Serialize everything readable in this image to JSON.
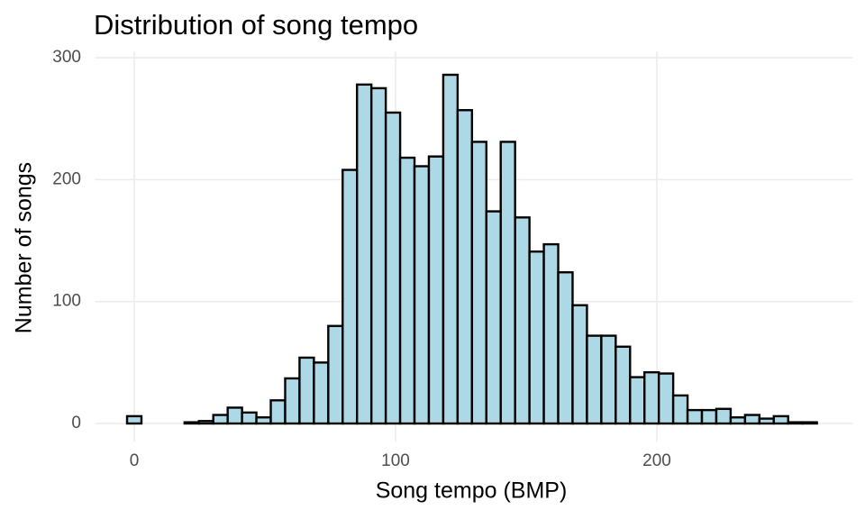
{
  "chart_data": {
    "type": "histogram",
    "title": "Distribution of song tempo",
    "x_label": "Song tempo (BMP)",
    "y_label": "Number of songs",
    "color": "#add8e6",
    "edge_color": "#000000",
    "grid": true,
    "bins": [
      -2.75,
      2.75,
      8.25,
      13.75,
      19.25,
      24.75,
      30.25,
      35.75,
      41.25,
      46.75,
      52.25,
      57.75,
      63.25,
      68.75,
      74.25,
      79.75,
      85.25,
      90.75,
      96.25,
      101.75,
      107.25,
      112.75,
      118.25,
      123.75,
      129.25,
      134.75,
      140.25,
      145.75,
      151.25,
      156.75,
      162.25,
      167.75,
      173.25,
      178.75,
      184.25,
      189.75,
      195.25,
      200.75,
      206.25,
      211.75,
      217.25,
      222.75,
      228.25,
      233.75,
      239.25,
      244.75,
      250.25,
      255.75,
      261.25
    ],
    "values": [
      6,
      0,
      0,
      0,
      1,
      2,
      7,
      13,
      9,
      5,
      19,
      37,
      54,
      50,
      80,
      208,
      278,
      275,
      255,
      218,
      211,
      219,
      286,
      257,
      231,
      174,
      231,
      169,
      141,
      147,
      124,
      97,
      72,
      72,
      63,
      38,
      42,
      41,
      23,
      11,
      11,
      12,
      5,
      7,
      4,
      6,
      1,
      1
    ],
    "xlim": [
      -15,
      275
    ],
    "xticks": [
      0,
      100,
      200
    ],
    "ylim": [
      -15,
      305
    ],
    "yticks": [
      0,
      100,
      200,
      300
    ]
  }
}
